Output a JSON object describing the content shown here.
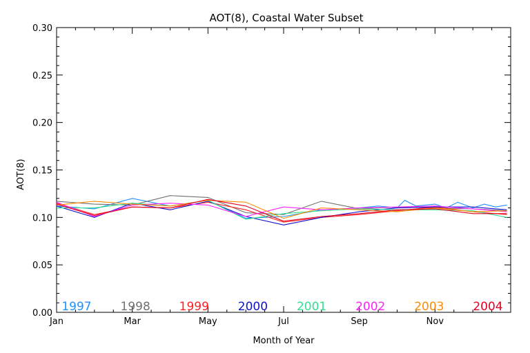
{
  "chart_data": {
    "type": "line",
    "title": "AOT(8), Coastal Water Subset",
    "xlabel": "Month of Year",
    "ylabel": "AOT(8)",
    "x_ticks": [
      "Jan",
      "Mar",
      "May",
      "Jul",
      "Sep",
      "Nov"
    ],
    "x_tick_months": [
      0,
      2,
      4,
      6,
      8,
      10
    ],
    "xlim": [
      0,
      12
    ],
    "ylim": [
      0.0,
      0.3
    ],
    "y_ticks": [
      "0.00",
      "0.05",
      "0.10",
      "0.15",
      "0.20",
      "0.25",
      "0.30"
    ],
    "y_tick_values": [
      0.0,
      0.05,
      0.1,
      0.15,
      0.2,
      0.25,
      0.3
    ],
    "grid": false,
    "legend_placement": "bottom, inside plot, horizontal",
    "series": [
      {
        "name": "1997",
        "color": "#1e90ff",
        "x": [
          0,
          1,
          2,
          3,
          4,
          5,
          6,
          7,
          8,
          8.5,
          9,
          9.2,
          9.5,
          10,
          10.3,
          10.6,
          11,
          11.3,
          11.6,
          11.9
        ],
        "y": [
          0.112,
          0.109,
          0.12,
          0.112,
          0.118,
          0.099,
          0.101,
          0.108,
          0.11,
          0.112,
          0.11,
          0.118,
          0.112,
          0.114,
          0.11,
          0.116,
          0.11,
          0.114,
          0.111,
          0.113
        ]
      },
      {
        "name": "1998",
        "color": "#707070",
        "x": [
          0,
          1,
          2,
          3,
          4,
          5,
          6,
          7,
          8,
          9,
          10,
          11,
          11.9
        ],
        "y": [
          0.117,
          0.114,
          0.113,
          0.123,
          0.121,
          0.105,
          0.103,
          0.117,
          0.109,
          0.111,
          0.11,
          0.109,
          0.107
        ]
      },
      {
        "name": "1999",
        "color": "#ff2020",
        "x": [
          0,
          1,
          2,
          3,
          4,
          5,
          6,
          7,
          8,
          9,
          10,
          11,
          11.9
        ],
        "y": [
          0.115,
          0.103,
          0.111,
          0.11,
          0.116,
          0.108,
          0.095,
          0.1,
          0.103,
          0.107,
          0.111,
          0.106,
          0.103
        ]
      },
      {
        "name": "2000",
        "color": "#1010d0",
        "x": [
          0,
          1,
          2,
          3,
          4,
          5,
          6,
          7,
          8,
          9,
          10,
          11,
          11.9
        ],
        "y": [
          0.112,
          0.1,
          0.115,
          0.108,
          0.117,
          0.101,
          0.092,
          0.1,
          0.106,
          0.11,
          0.111,
          0.111,
          0.108
        ]
      },
      {
        "name": "2001",
        "color": "#30e090",
        "x": [
          0,
          1,
          2,
          3,
          4,
          5,
          6,
          7,
          8,
          9,
          10,
          11,
          11.9
        ],
        "y": [
          0.11,
          0.11,
          0.115,
          0.112,
          0.118,
          0.098,
          0.104,
          0.107,
          0.109,
          0.108,
          0.108,
          0.107,
          0.1
        ]
      },
      {
        "name": "2002",
        "color": "#ff20ff",
        "x": [
          0,
          1,
          2,
          3,
          4,
          5,
          6,
          7,
          8,
          9,
          10,
          11,
          11.9
        ],
        "y": [
          0.116,
          0.101,
          0.113,
          0.115,
          0.113,
          0.101,
          0.111,
          0.108,
          0.11,
          0.111,
          0.112,
          0.109,
          0.106
        ]
      },
      {
        "name": "2003",
        "color": "#ff8c00",
        "x": [
          0,
          1,
          2,
          3,
          4,
          5,
          6,
          7,
          8,
          9,
          10,
          11,
          11.9
        ],
        "y": [
          0.113,
          0.117,
          0.114,
          0.112,
          0.118,
          0.116,
          0.099,
          0.11,
          0.108,
          0.106,
          0.11,
          0.106,
          0.107
        ]
      },
      {
        "name": "2004",
        "color": "#e00020",
        "x": [
          0,
          1,
          2,
          3,
          4,
          5,
          6,
          7,
          8,
          9,
          10,
          11,
          11.9
        ],
        "y": [
          0.114,
          0.102,
          0.111,
          0.11,
          0.119,
          0.112,
          0.096,
          0.101,
          0.104,
          0.108,
          0.109,
          0.104,
          0.104
        ]
      }
    ]
  }
}
